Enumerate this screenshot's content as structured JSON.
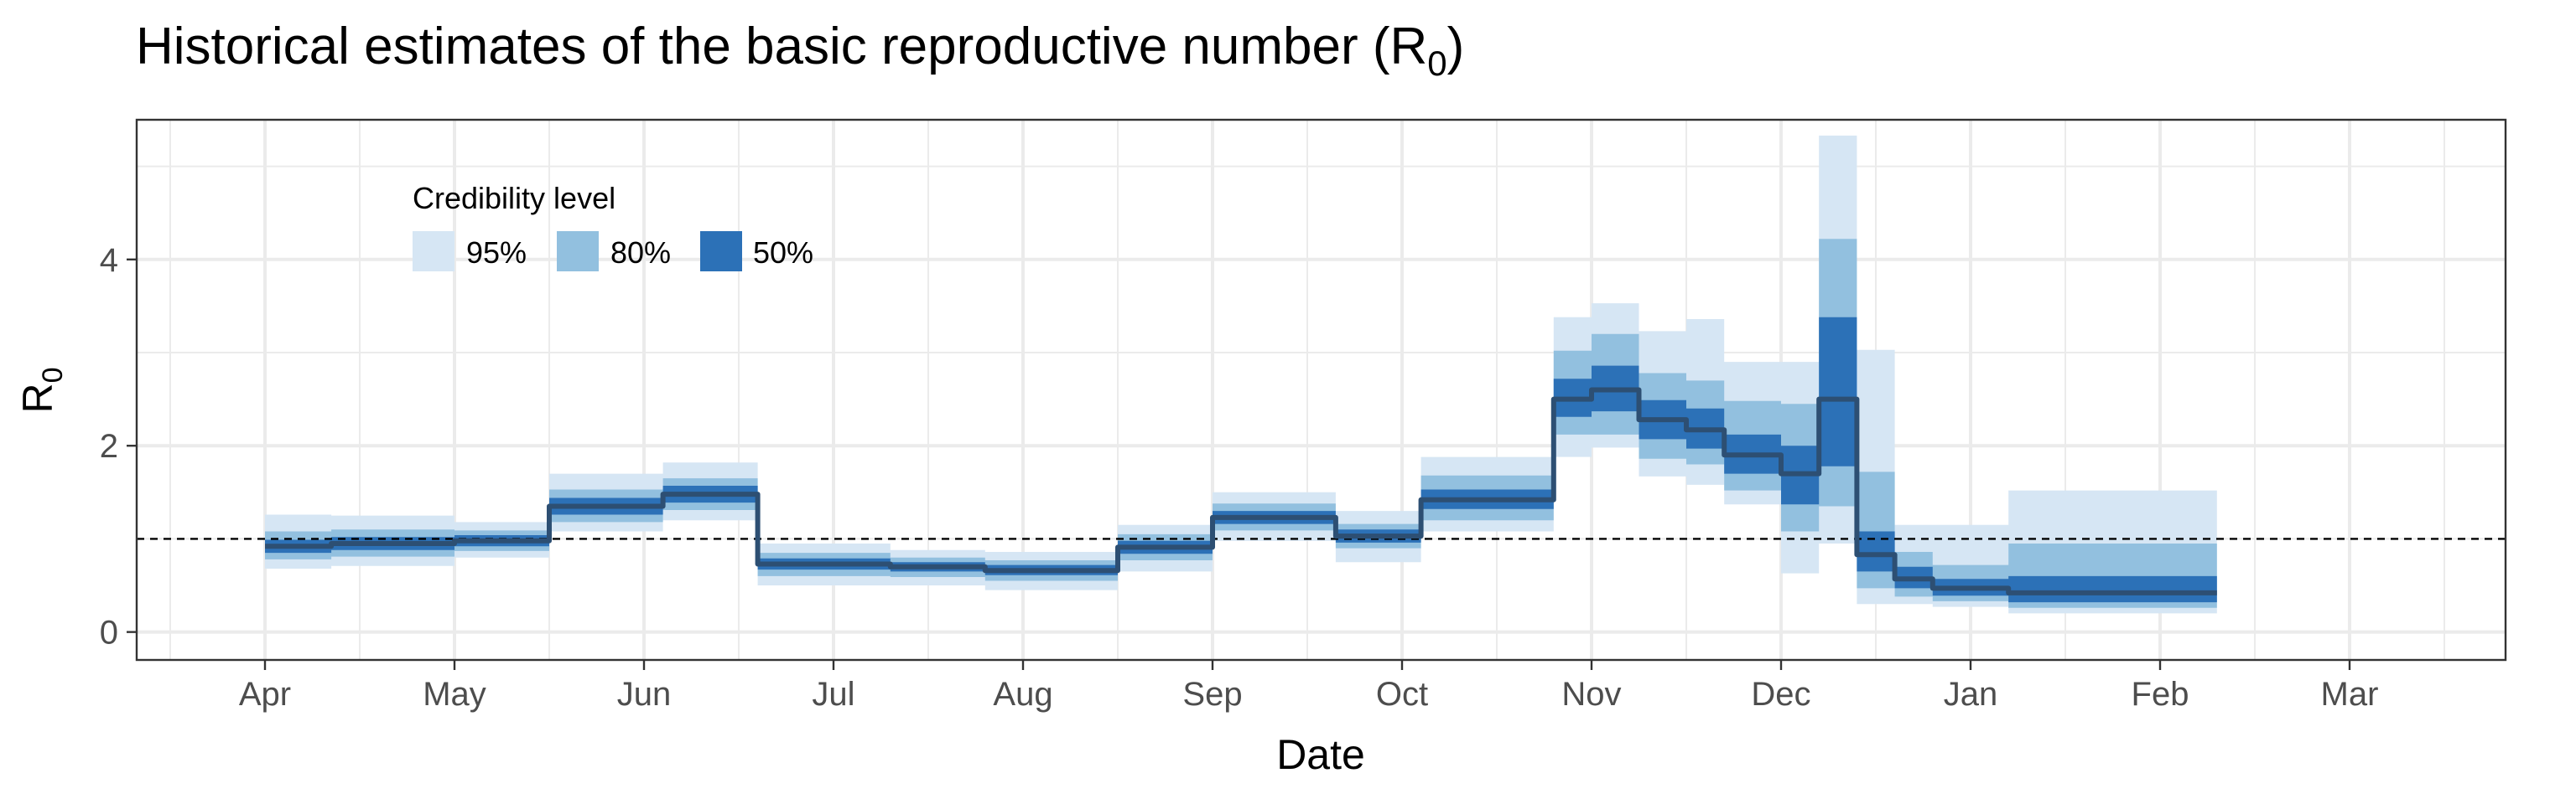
{
  "chart_data": {
    "type": "area",
    "title_main": "Historical estimates of the basic reproductive number (R",
    "title_sub": "0",
    "title_close": ")",
    "xlabel": "Date",
    "ylabel_main": "R",
    "ylabel_sub": "0",
    "x_ticks": [
      "Apr",
      "May",
      "Jun",
      "Jul",
      "Aug",
      "Sep",
      "Oct",
      "Nov",
      "Dec",
      "Jan",
      "Feb",
      "Mar"
    ],
    "x_range": [
      -0.05,
      12.3
    ],
    "ylim": [
      -0.3,
      5.5
    ],
    "y_ticks": [
      "0",
      "2",
      "4"
    ],
    "y_tick_values": [
      0,
      2,
      4
    ],
    "reference_line": 1,
    "grid": true,
    "legend": {
      "title": "Credibility level",
      "position": "top-left",
      "items": [
        {
          "label": "95%",
          "color": "#d6e6f4"
        },
        {
          "label": "80%",
          "color": "#92c0df"
        },
        {
          "label": "50%",
          "color": "#2c71b7"
        }
      ]
    },
    "colors": {
      "band95": "#d6e6f4",
      "band80": "#92c0df",
      "band50": "#2c71b7",
      "median": "#2d4f73"
    },
    "segments": [
      {
        "x0": 0.0,
        "x1": 0.35,
        "median": 0.92,
        "ci50": [
          0.85,
          0.99
        ],
        "ci80": [
          0.78,
          1.08
        ],
        "ci95": [
          0.68,
          1.26
        ]
      },
      {
        "x0": 0.35,
        "x1": 1.0,
        "median": 0.95,
        "ci50": [
          0.88,
          1.02
        ],
        "ci80": [
          0.81,
          1.1
        ],
        "ci95": [
          0.71,
          1.25
        ]
      },
      {
        "x0": 1.0,
        "x1": 1.5,
        "median": 0.98,
        "ci50": [
          0.92,
          1.04
        ],
        "ci80": [
          0.87,
          1.09
        ],
        "ci95": [
          0.8,
          1.18
        ]
      },
      {
        "x0": 1.5,
        "x1": 2.1,
        "median": 1.35,
        "ci50": [
          1.26,
          1.44
        ],
        "ci80": [
          1.18,
          1.53
        ],
        "ci95": [
          1.08,
          1.7
        ]
      },
      {
        "x0": 2.1,
        "x1": 2.6,
        "median": 1.48,
        "ci50": [
          1.39,
          1.57
        ],
        "ci80": [
          1.31,
          1.65
        ],
        "ci95": [
          1.2,
          1.82
        ]
      },
      {
        "x0": 2.6,
        "x1": 3.3,
        "median": 0.73,
        "ci50": [
          0.67,
          0.79
        ],
        "ci80": [
          0.6,
          0.85
        ],
        "ci95": [
          0.5,
          0.95
        ]
      },
      {
        "x0": 3.3,
        "x1": 3.8,
        "median": 0.7,
        "ci50": [
          0.65,
          0.75
        ],
        "ci80": [
          0.59,
          0.8
        ],
        "ci95": [
          0.5,
          0.88
        ]
      },
      {
        "x0": 3.8,
        "x1": 4.5,
        "median": 0.66,
        "ci50": [
          0.61,
          0.72
        ],
        "ci80": [
          0.55,
          0.77
        ],
        "ci95": [
          0.45,
          0.86
        ]
      },
      {
        "x0": 4.5,
        "x1": 5.0,
        "median": 0.91,
        "ci50": [
          0.84,
          0.98
        ],
        "ci80": [
          0.77,
          1.05
        ],
        "ci95": [
          0.65,
          1.15
        ]
      },
      {
        "x0": 5.0,
        "x1": 5.65,
        "median": 1.23,
        "ci50": [
          1.16,
          1.3
        ],
        "ci80": [
          1.09,
          1.38
        ],
        "ci95": [
          0.98,
          1.5
        ]
      },
      {
        "x0": 5.65,
        "x1": 6.1,
        "median": 1.03,
        "ci50": [
          0.96,
          1.1
        ],
        "ci80": [
          0.9,
          1.16
        ],
        "ci95": [
          0.75,
          1.3
        ]
      },
      {
        "x0": 6.1,
        "x1": 6.8,
        "median": 1.42,
        "ci50": [
          1.32,
          1.53
        ],
        "ci80": [
          1.2,
          1.68
        ],
        "ci95": [
          1.08,
          1.88
        ]
      },
      {
        "x0": 6.8,
        "x1": 7.0,
        "median": 2.5,
        "ci50": [
          2.31,
          2.72
        ],
        "ci80": [
          2.12,
          3.02
        ],
        "ci95": [
          1.88,
          3.38
        ]
      },
      {
        "x0": 7.0,
        "x1": 7.25,
        "median": 2.6,
        "ci50": [
          2.37,
          2.86
        ],
        "ci80": [
          2.12,
          3.2
        ],
        "ci95": [
          1.98,
          3.53
        ]
      },
      {
        "x0": 7.25,
        "x1": 7.5,
        "median": 2.28,
        "ci50": [
          2.07,
          2.49
        ],
        "ci80": [
          1.86,
          2.78
        ],
        "ci95": [
          1.67,
          3.23
        ]
      },
      {
        "x0": 7.5,
        "x1": 7.7,
        "median": 2.17,
        "ci50": [
          1.97,
          2.4
        ],
        "ci80": [
          1.8,
          2.7
        ],
        "ci95": [
          1.58,
          3.36
        ]
      },
      {
        "x0": 7.7,
        "x1": 8.0,
        "median": 1.9,
        "ci50": [
          1.7,
          2.12
        ],
        "ci80": [
          1.52,
          2.48
        ],
        "ci95": [
          1.37,
          2.9
        ]
      },
      {
        "x0": 8.0,
        "x1": 8.2,
        "median": 1.7,
        "ci50": [
          1.37,
          2.0
        ],
        "ci80": [
          1.08,
          2.45
        ],
        "ci95": [
          0.63,
          2.9
        ]
      },
      {
        "x0": 8.2,
        "x1": 8.4,
        "median": 2.5,
        "ci50": [
          1.78,
          3.38
        ],
        "ci80": [
          1.35,
          4.22
        ],
        "ci95": [
          0.95,
          5.33
        ]
      },
      {
        "x0": 8.4,
        "x1": 8.6,
        "median": 0.83,
        "ci50": [
          0.65,
          1.08
        ],
        "ci80": [
          0.47,
          1.72
        ],
        "ci95": [
          0.3,
          3.03
        ]
      },
      {
        "x0": 8.6,
        "x1": 8.8,
        "median": 0.57,
        "ci50": [
          0.47,
          0.7
        ],
        "ci80": [
          0.38,
          0.86
        ],
        "ci95": [
          0.3,
          1.15
        ]
      },
      {
        "x0": 8.8,
        "x1": 9.2,
        "median": 0.47,
        "ci50": [
          0.39,
          0.57
        ],
        "ci80": [
          0.33,
          0.72
        ],
        "ci95": [
          0.27,
          1.15
        ]
      },
      {
        "x0": 9.2,
        "x1": 10.3,
        "median": 0.42,
        "ci50": [
          0.32,
          0.6
        ],
        "ci80": [
          0.26,
          0.95
        ],
        "ci95": [
          0.2,
          1.52
        ]
      }
    ]
  }
}
